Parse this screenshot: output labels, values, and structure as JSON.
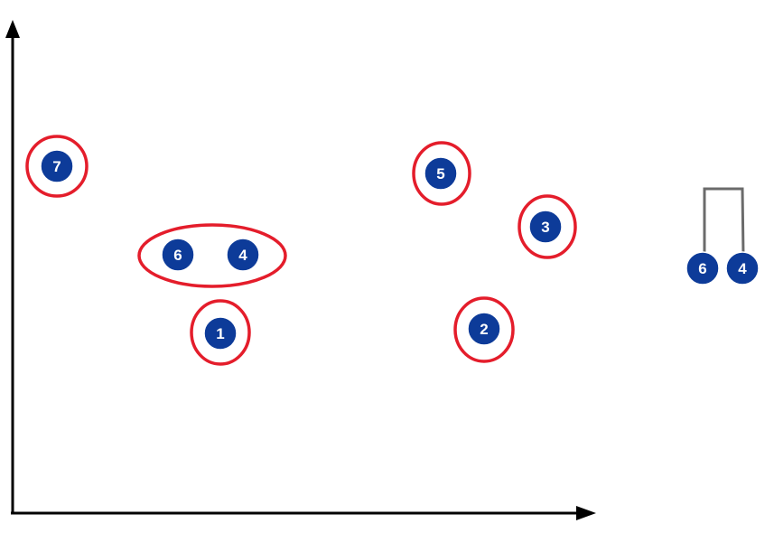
{
  "colors": {
    "node_fill": "#0d3b99",
    "node_stroke": "#ffffff",
    "cluster_ring": "#e41d2b",
    "axis": "#000000",
    "dendrogram_link": "#6b6b6b"
  },
  "points": [
    {
      "id": "point-7",
      "label": "7"
    },
    {
      "id": "point-6",
      "label": "6"
    },
    {
      "id": "point-4",
      "label": "4"
    },
    {
      "id": "point-1",
      "label": "1"
    },
    {
      "id": "point-5",
      "label": "5"
    },
    {
      "id": "point-3",
      "label": "3"
    },
    {
      "id": "point-2",
      "label": "2"
    }
  ],
  "dendrogram": {
    "leaves": [
      "6",
      "4"
    ]
  }
}
